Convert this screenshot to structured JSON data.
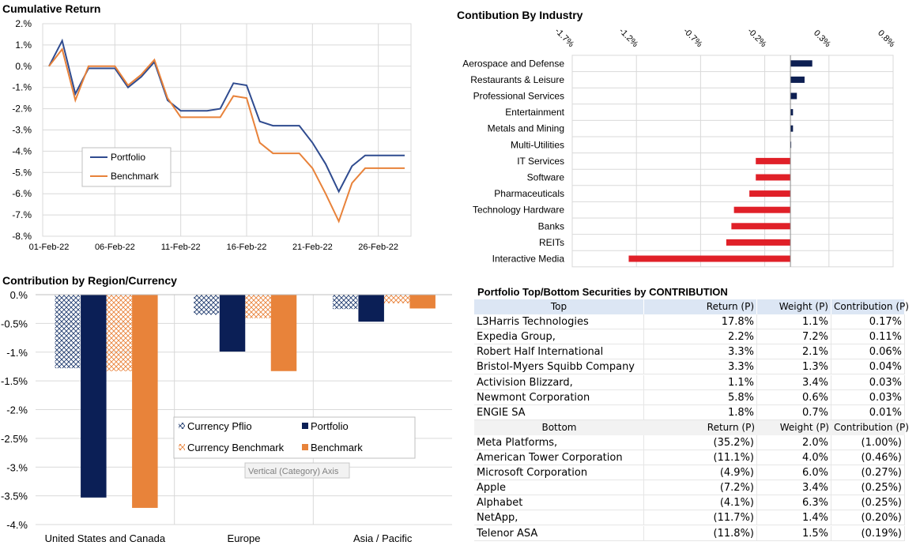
{
  "charts": {
    "cumulative": {
      "title": "Cumulative Return",
      "yticks": [
        "2.%",
        "1.%",
        "0.%",
        "-1.%",
        "-2.%",
        "-3.%",
        "-4.%",
        "-5.%",
        "-6.%",
        "-7.%",
        "-8.%"
      ],
      "xticks": [
        "01-Feb-22",
        "06-Feb-22",
        "11-Feb-22",
        "16-Feb-22",
        "21-Feb-22",
        "26-Feb-22"
      ],
      "legend": [
        "Portfolio",
        "Benchmark"
      ]
    },
    "industry": {
      "title": "Contibution By Industry",
      "ticks": [
        "-1.7%",
        "-1.2%",
        "-0.7%",
        "-0.2%",
        "0.3%",
        "0.8%"
      ]
    },
    "region": {
      "title": "Contribution by Region/Currency",
      "yticks": [
        "0.%",
        "-0.5%",
        "-1.%",
        "-1.5%",
        "-2.%",
        "-2.5%",
        "-3.%",
        "-3.5%",
        "-4.%"
      ],
      "legend": [
        "Currency Pflio",
        "Portfolio",
        "Currency Benchmark",
        "Benchmark"
      ],
      "tooltip": "Vertical (Category) Axis"
    }
  },
  "chart_data": [
    {
      "type": "line",
      "title": "Cumulative Return",
      "x": [
        "01-Feb-22",
        "02-Feb-22",
        "03-Feb-22",
        "04-Feb-22",
        "05-Feb-22",
        "06-Feb-22",
        "07-Feb-22",
        "08-Feb-22",
        "09-Feb-22",
        "10-Feb-22",
        "11-Feb-22",
        "12-Feb-22",
        "13-Feb-22",
        "14-Feb-22",
        "15-Feb-22",
        "16-Feb-22",
        "17-Feb-22",
        "18-Feb-22",
        "19-Feb-22",
        "20-Feb-22",
        "21-Feb-22",
        "22-Feb-22",
        "23-Feb-22",
        "24-Feb-22",
        "25-Feb-22",
        "26-Feb-22",
        "27-Feb-22",
        "28-Feb-22"
      ],
      "series": [
        {
          "name": "Portfolio",
          "color": "#2f4b8f",
          "values": [
            0.0,
            1.2,
            -1.3,
            -0.1,
            -0.1,
            -0.1,
            -1.0,
            -0.5,
            0.2,
            -1.6,
            -2.1,
            -2.1,
            -2.1,
            -2.0,
            -0.8,
            -0.9,
            -2.6,
            -2.8,
            -2.8,
            -2.8,
            -3.6,
            -4.6,
            -5.9,
            -4.7,
            -4.2,
            -4.2,
            -4.2,
            -4.2
          ]
        },
        {
          "name": "Benchmark",
          "color": "#e8823a",
          "values": [
            0.0,
            0.8,
            -1.6,
            0.0,
            0.0,
            0.0,
            -0.9,
            -0.4,
            0.3,
            -1.5,
            -2.4,
            -2.4,
            -2.4,
            -2.4,
            -1.4,
            -1.5,
            -3.6,
            -4.1,
            -4.1,
            -4.1,
            -4.8,
            -6.0,
            -7.3,
            -5.5,
            -4.8,
            -4.8,
            -4.8,
            -4.8
          ]
        }
      ],
      "ylim": [
        -8,
        2
      ],
      "legend": "center-left"
    },
    {
      "type": "bar",
      "orientation": "horizontal",
      "title": "Contibution By Industry",
      "categories": [
        "Aerospace and Defense",
        "Restaurants & Leisure",
        "Professional Services",
        "Entertainment",
        "Metals and Mining",
        "Multi-Utilities",
        "IT Services",
        "Software",
        "Pharmaceuticals",
        "Technology Hardware",
        "Banks",
        "REITs",
        "Interactive Media"
      ],
      "values": [
        0.17,
        0.11,
        0.05,
        0.02,
        0.02,
        0.005,
        -0.27,
        -0.27,
        -0.32,
        -0.44,
        -0.46,
        -0.5,
        -1.26
      ],
      "xlim": [
        -1.7,
        0.8
      ],
      "colors": {
        "positive": "#0d1f52",
        "negative": "#e02028"
      }
    },
    {
      "type": "bar",
      "title": "Contribution by Region/Currency",
      "categories": [
        "United States and Canada",
        "Europe",
        "Asia / Pacific"
      ],
      "series": [
        {
          "name": "Currency Pflio",
          "values": [
            -1.28,
            -0.35,
            -0.25
          ],
          "color": "#1f3a6e"
        },
        {
          "name": "Portfolio",
          "values": [
            -3.53,
            -0.99,
            -0.47
          ],
          "color": "#0b1f56"
        },
        {
          "name": "Currency Benchmark",
          "values": [
            -1.33,
            -0.41,
            -0.15
          ],
          "color": "#e8823a"
        },
        {
          "name": "Benchmark",
          "values": [
            -3.71,
            -1.33,
            -0.24
          ],
          "color": "#e8833a"
        }
      ],
      "ylim": [
        -4,
        0
      ]
    }
  ],
  "table": {
    "title": "Portfolio Top/Bottom Securities by CONTRIBUTION",
    "header": [
      "Top",
      "Return (P)",
      "Weight (P)",
      "Contribution (P)"
    ],
    "top": [
      [
        "L3Harris Technologies",
        "17.8%",
        "1.1%",
        "0.17%"
      ],
      [
        "Expedia Group,",
        "2.2%",
        "7.2%",
        "0.11%"
      ],
      [
        "Robert Half International",
        "3.3%",
        "2.1%",
        "0.06%"
      ],
      [
        "Bristol-Myers Squibb Company",
        "3.3%",
        "1.3%",
        "0.04%"
      ],
      [
        "Activision Blizzard,",
        "1.1%",
        "3.4%",
        "0.03%"
      ],
      [
        "Newmont Corporation",
        "5.8%",
        "0.6%",
        "0.03%"
      ],
      [
        "ENGIE SA",
        "1.8%",
        "0.7%",
        "0.01%"
      ]
    ],
    "subheader": [
      "Bottom",
      "Return (P)",
      "Weight (P)",
      "Contribution (P)"
    ],
    "bottom": [
      [
        "Meta Platforms,",
        "(35.2%)",
        "2.0%",
        "(1.00%)"
      ],
      [
        "American Tower Corporation",
        "(11.1%)",
        "4.0%",
        "(0.46%)"
      ],
      [
        "Microsoft Corporation",
        "(4.9%)",
        "6.0%",
        "(0.27%)"
      ],
      [
        "Apple",
        "(7.2%)",
        "3.4%",
        "(0.25%)"
      ],
      [
        "Alphabet",
        "(4.1%)",
        "6.3%",
        "(0.25%)"
      ],
      [
        "NetApp,",
        "(11.7%)",
        "1.4%",
        "(0.20%)"
      ],
      [
        "Telenor ASA",
        "(11.8%)",
        "1.5%",
        "(0.19%)"
      ]
    ]
  }
}
